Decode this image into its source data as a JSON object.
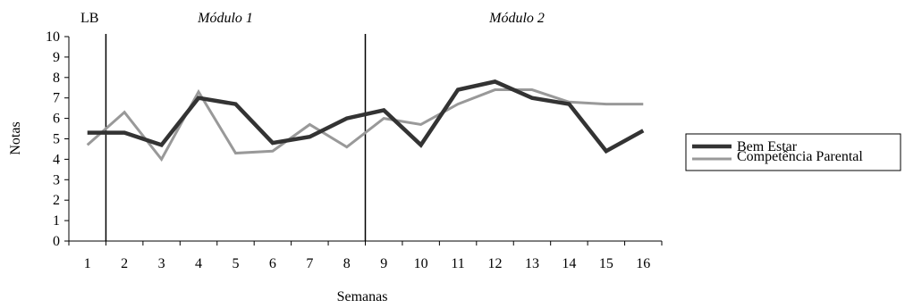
{
  "chart_data": {
    "type": "line",
    "title": "",
    "xlabel": "Semanas",
    "ylabel": "Notas",
    "ylim": [
      0,
      10
    ],
    "y_ticks": [
      0,
      1,
      2,
      3,
      4,
      5,
      6,
      7,
      8,
      9,
      10
    ],
    "categories": [
      "1",
      "2",
      "3",
      "4",
      "5",
      "6",
      "7",
      "8",
      "9",
      "10",
      "11",
      "12",
      "13",
      "14",
      "15",
      "16"
    ],
    "series": [
      {
        "name": "Bem Estar",
        "color": "#333333",
        "values": [
          5.3,
          5.3,
          4.7,
          7.0,
          6.7,
          4.8,
          5.1,
          6.0,
          6.4,
          4.7,
          7.4,
          7.8,
          7.0,
          6.7,
          4.4,
          5.4
        ]
      },
      {
        "name": "Competência Parental",
        "color": "#999999",
        "values": [
          4.7,
          6.3,
          4.0,
          7.3,
          4.3,
          4.4,
          5.7,
          4.6,
          6.0,
          5.7,
          6.7,
          7.4,
          7.4,
          6.8,
          6.7,
          6.7
        ]
      }
    ],
    "phase_labels": [
      "LB",
      "Módulo 1",
      "Módulo 2"
    ],
    "phase_change_after_weeks": [
      1.5,
      8.5
    ],
    "grid": false,
    "legend_position": "right"
  }
}
